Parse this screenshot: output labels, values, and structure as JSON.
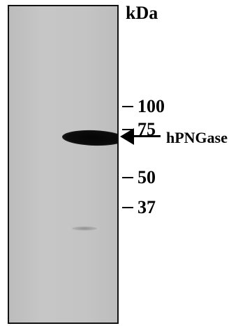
{
  "figure": {
    "unit_label": "kDa",
    "markers": [
      {
        "label": "100"
      },
      {
        "label": "75"
      },
      {
        "label": "50"
      },
      {
        "label": "37"
      }
    ],
    "band_label": "hPNGase"
  }
}
